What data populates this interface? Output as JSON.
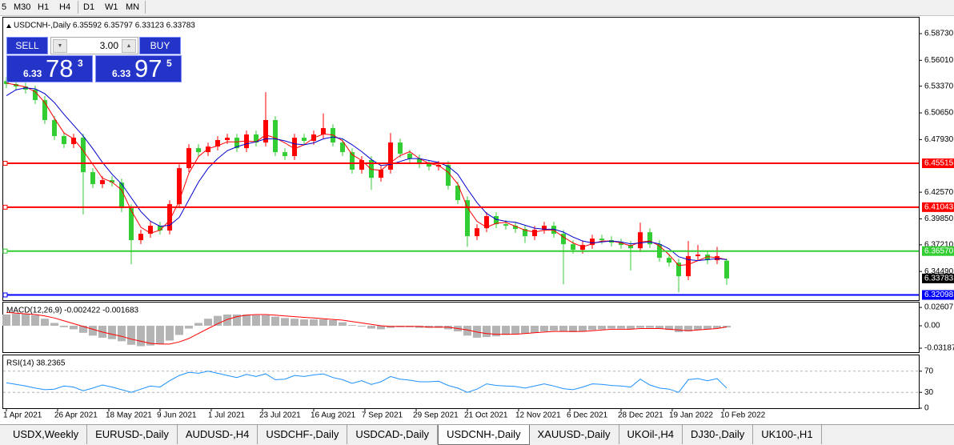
{
  "toolbar": {
    "timeframes": [
      "5",
      "M30",
      "H1",
      "H4",
      "D1",
      "W1",
      "MN"
    ]
  },
  "trade_panel": {
    "sell": "SELL",
    "lot": "3.00",
    "buy": "BUY",
    "sell_price": {
      "prefix": "6.33",
      "big": "78",
      "sup": "3"
    },
    "buy_price": {
      "prefix": "6.33",
      "big": "97",
      "sup": "5"
    }
  },
  "chart_data": [
    {
      "type": "candlestick",
      "title": "USDCNH-,Daily 6.35592 6.35797 6.33123 6.33783",
      "open": [
        6.539,
        6.5359,
        6.5334,
        6.5302,
        6.5196,
        6.4992,
        6.4829,
        6.4747,
        6.4812,
        6.4461,
        6.4339,
        6.438,
        6.4355,
        6.4094,
        6.3768,
        6.3833,
        6.3915,
        6.3866,
        6.4135,
        6.4502,
        6.4706,
        6.4665,
        6.4722,
        6.4788,
        6.4812,
        6.4706,
        6.4845,
        6.4763,
        6.4992,
        6.4665,
        6.4625,
        6.4812,
        6.478,
        6.4845,
        6.491,
        6.4763,
        6.4665,
        6.4486,
        6.4584,
        6.4404,
        6.4486,
        6.4763,
        6.4649,
        6.46,
        6.4543,
        6.4518,
        6.4535,
        6.4323,
        6.4176,
        6.3809,
        6.389,
        6.4013,
        6.3931,
        6.3915,
        6.3882,
        6.3809,
        6.3874,
        6.3915,
        6.3833,
        6.3727,
        6.367,
        6.3719,
        6.3784,
        6.3768,
        6.3743,
        6.3719,
        6.3686,
        6.3849,
        6.3727,
        6.3588,
        6.3539,
        6.3401,
        6.3605,
        6.3621,
        6.3564,
        6.35592
      ],
      "high": [
        6.543,
        6.5399,
        6.5374,
        6.5342,
        6.5236,
        6.5032,
        6.4869,
        6.4852,
        6.4852,
        6.4501,
        6.442,
        6.442,
        6.4395,
        6.4134,
        6.3873,
        6.3955,
        6.3955,
        6.4175,
        6.4542,
        6.4746,
        6.4746,
        6.4762,
        6.4828,
        6.4852,
        6.4852,
        6.4885,
        6.4885,
        6.5277,
        6.5032,
        6.4705,
        6.4852,
        6.4852,
        6.4885,
        6.506,
        6.495,
        6.4803,
        6.4705,
        6.4624,
        6.4624,
        6.4526,
        6.486,
        6.4803,
        6.4689,
        6.464,
        6.4583,
        6.4575,
        6.4575,
        6.4363,
        6.4216,
        6.393,
        6.4053,
        6.4053,
        6.3971,
        6.3955,
        6.3922,
        6.3914,
        6.3955,
        6.3955,
        6.3873,
        6.3767,
        6.3759,
        6.3824,
        6.3824,
        6.3808,
        6.3783,
        6.3759,
        6.3947,
        6.3889,
        6.3767,
        6.3628,
        6.3579,
        6.376,
        6.372,
        6.3661,
        6.37,
        6.35797
      ],
      "low": [
        6.5319,
        6.5294,
        6.5262,
        6.5156,
        6.4952,
        6.4789,
        6.4707,
        6.4707,
        6.403,
        6.4299,
        6.4299,
        6.4315,
        6.4054,
        6.3523,
        6.3728,
        6.3793,
        6.3826,
        6.3826,
        6.4095,
        6.4462,
        6.4625,
        6.4625,
        6.4682,
        6.4748,
        6.4666,
        6.4666,
        6.4723,
        6.4723,
        6.4625,
        6.4585,
        6.4585,
        6.474,
        6.474,
        6.4805,
        6.4723,
        6.4625,
        6.4446,
        6.4446,
        6.428,
        6.4364,
        6.4446,
        6.4609,
        6.456,
        6.4503,
        6.4478,
        6.4478,
        6.4283,
        6.4136,
        6.37,
        6.3769,
        6.385,
        6.3891,
        6.3875,
        6.3842,
        6.374,
        6.3769,
        6.3834,
        6.3793,
        6.3319,
        6.363,
        6.363,
        6.3679,
        6.3728,
        6.3703,
        6.3679,
        6.346,
        6.3646,
        6.3687,
        6.3548,
        6.3499,
        6.3237,
        6.3361,
        6.3565,
        6.3524,
        6.3524,
        6.33123
      ],
      "close": [
        6.5359,
        6.5334,
        6.5302,
        6.5196,
        6.4992,
        6.4829,
        6.4747,
        6.4812,
        6.4461,
        6.4339,
        6.438,
        6.4355,
        6.4094,
        6.3768,
        6.3833,
        6.3915,
        6.3866,
        6.4135,
        6.4502,
        6.4706,
        6.4665,
        6.4722,
        6.4788,
        6.4812,
        6.4706,
        6.4845,
        6.4763,
        6.4992,
        6.4665,
        6.4625,
        6.4812,
        6.478,
        6.4845,
        6.491,
        6.4763,
        6.4665,
        6.4486,
        6.4584,
        6.4404,
        6.4486,
        6.4763,
        6.4649,
        6.46,
        6.4543,
        6.4518,
        6.4535,
        6.4323,
        6.4176,
        6.3809,
        6.389,
        6.4013,
        6.3931,
        6.3915,
        6.3882,
        6.3809,
        6.3874,
        6.3915,
        6.3833,
        6.3727,
        6.367,
        6.3719,
        6.3784,
        6.3768,
        6.3743,
        6.3719,
        6.3686,
        6.3849,
        6.3727,
        6.3588,
        6.3539,
        6.3401,
        6.3605,
        6.3621,
        6.3564,
        6.3605,
        6.33783
      ],
      "up_color": "#ff0000",
      "down_color": "#32cd32",
      "overlays": [
        {
          "color": "#ff0000",
          "values": [
            6.537,
            6.535,
            6.533,
            6.528,
            6.517,
            6.501,
            6.486,
            6.48,
            6.468,
            6.454,
            6.44,
            6.436,
            6.428,
            6.407,
            6.39,
            6.384,
            6.387,
            6.397,
            6.417,
            6.445,
            6.462,
            6.47,
            6.473,
            6.477,
            6.477,
            6.478,
            6.477,
            6.484,
            6.481,
            6.476,
            6.47,
            6.474,
            6.481,
            6.485,
            6.484,
            6.478,
            6.464,
            6.458,
            6.449,
            6.448,
            6.456,
            6.463,
            6.467,
            6.46,
            6.455,
            6.453,
            6.446,
            6.434,
            6.41,
            6.396,
            6.39,
            6.394,
            6.395,
            6.391,
            6.387,
            6.385,
            6.387,
            6.387,
            6.38,
            6.374,
            6.37,
            6.373,
            6.376,
            6.376,
            6.374,
            6.371,
            6.375,
            6.376,
            6.371,
            6.362,
            6.351,
            6.352,
            6.356,
            6.36,
            6.359,
            6.357
          ]
        },
        {
          "color": "#0000cd",
          "values": [
            6.524,
            6.53,
            6.532,
            6.531,
            6.526,
            6.517,
            6.505,
            6.494,
            6.483,
            6.47,
            6.456,
            6.444,
            6.434,
            6.42,
            6.406,
            6.396,
            6.391,
            6.392,
            6.4,
            6.418,
            6.436,
            6.45,
            6.46,
            6.468,
            6.472,
            6.475,
            6.477,
            6.48,
            6.48,
            6.478,
            6.475,
            6.474,
            6.476,
            6.48,
            6.482,
            6.48,
            6.474,
            6.467,
            6.459,
            6.453,
            6.454,
            6.457,
            6.46,
            6.46,
            6.458,
            6.456,
            6.452,
            6.444,
            6.429,
            6.415,
            6.404,
            6.398,
            6.396,
            6.395,
            6.392,
            6.389,
            6.388,
            6.388,
            6.385,
            6.38,
            6.376,
            6.374,
            6.375,
            6.376,
            6.375,
            6.373,
            6.374,
            6.375,
            6.373,
            6.368,
            6.36,
            6.357,
            6.356,
            6.357,
            6.358,
            6.357
          ]
        }
      ],
      "levels": [
        {
          "value": 6.45515,
          "label": "6.45515",
          "color": "#ff0000"
        },
        {
          "value": 6.41043,
          "label": "6.41043",
          "color": "#ff0000"
        },
        {
          "value": 6.3657,
          "label": "6.36570",
          "color": "#32cd32"
        },
        {
          "value": 6.32098,
          "label": "6.32098",
          "color": "#0000ff"
        }
      ],
      "xlim": [
        -0.33,
        95
      ],
      "xticks": [
        {
          "value": 0,
          "label": "1 Apr 2021"
        },
        {
          "value": 5.33,
          "label": "26 Apr 2021"
        },
        {
          "value": 10.67,
          "label": "18 May 2021"
        },
        {
          "value": 16,
          "label": "9 Jun 2021"
        },
        {
          "value": 21.33,
          "label": "1 Jul 2021"
        },
        {
          "value": 26.67,
          "label": "23 Jul 2021"
        },
        {
          "value": 32,
          "label": "16 Aug 2021"
        },
        {
          "value": 37.33,
          "label": "7 Sep 2021"
        },
        {
          "value": 42.67,
          "label": "29 Sep 2021"
        },
        {
          "value": 48,
          "label": "21 Oct 2021"
        },
        {
          "value": 53.33,
          "label": "12 Nov 2021"
        },
        {
          "value": 58.67,
          "label": "6 Dec 2021"
        },
        {
          "value": 64,
          "label": "28 Dec 2021"
        },
        {
          "value": 69.33,
          "label": "19 Jan 2022"
        },
        {
          "value": 74.67,
          "label": "10 Feb 2022"
        }
      ],
      "ylim": [
        6.3157,
        6.6036
      ],
      "yticks": [
        {
          "value": 6.5873,
          "label": "6.58730"
        },
        {
          "value": 6.5601,
          "label": "6.56010"
        },
        {
          "value": 6.5337,
          "label": "6.53370"
        },
        {
          "value": 6.5065,
          "label": "6.50650"
        },
        {
          "value": 6.4793,
          "label": "6.47930"
        },
        {
          "value": 6.4257,
          "label": "6.42570"
        },
        {
          "value": 6.3985,
          "label": "6.39850"
        },
        {
          "value": 6.3721,
          "label": "6.37210"
        },
        {
          "value": 6.3449,
          "label": "6.34490"
        }
      ]
    },
    {
      "type": "macd",
      "title": "MACD(12,26,9) -0.002422 -0.001683",
      "values": [
        0.016,
        0.017,
        0.017,
        0.015,
        0.01,
        0.004,
        -0.002,
        -0.005,
        -0.01,
        -0.014,
        -0.017,
        -0.019,
        -0.022,
        -0.027,
        -0.029,
        -0.028,
        -0.026,
        -0.021,
        -0.013,
        -0.004,
        0.004,
        0.01,
        0.014,
        0.016,
        0.016,
        0.016,
        0.015,
        0.015,
        0.013,
        0.011,
        0.01,
        0.009,
        0.009,
        0.009,
        0.008,
        0.005,
        0.001,
        -0.001,
        -0.004,
        -0.005,
        -0.003,
        -0.002,
        -0.002,
        -0.003,
        -0.003,
        -0.003,
        -0.005,
        -0.008,
        -0.014,
        -0.017,
        -0.016,
        -0.015,
        -0.013,
        -0.012,
        -0.011,
        -0.01,
        -0.008,
        -0.007,
        -0.008,
        -0.009,
        -0.008,
        -0.006,
        -0.005,
        -0.004,
        -0.004,
        -0.005,
        -0.003,
        -0.003,
        -0.004,
        -0.006,
        -0.009,
        -0.008,
        -0.006,
        -0.005,
        -0.004,
        -0.002422
      ],
      "color": "#b4b4b4",
      "signal": {
        "color": "#ff0000",
        "values": [
          0.019,
          0.018,
          0.017,
          0.016,
          0.014,
          0.011,
          0.007,
          0.003,
          -0.001,
          -0.005,
          -0.009,
          -0.012,
          -0.015,
          -0.019,
          -0.022,
          -0.025,
          -0.026,
          -0.026,
          -0.023,
          -0.018,
          -0.011,
          -0.004,
          0.003,
          0.009,
          0.013,
          0.015,
          0.016,
          0.016,
          0.015,
          0.014,
          0.013,
          0.012,
          0.011,
          0.01,
          0.009,
          0.008,
          0.006,
          0.004,
          0.002,
          0.0,
          -0.001,
          -0.001,
          -0.001,
          -0.001,
          -0.002,
          -0.002,
          -0.002,
          -0.004,
          -0.006,
          -0.009,
          -0.011,
          -0.012,
          -0.012,
          -0.012,
          -0.011,
          -0.01,
          -0.009,
          -0.008,
          -0.008,
          -0.008,
          -0.008,
          -0.007,
          -0.006,
          -0.005,
          -0.005,
          -0.005,
          -0.004,
          -0.004,
          -0.004,
          -0.005,
          -0.006,
          -0.007,
          -0.006,
          -0.005,
          -0.004,
          -0.001683
        ]
      },
      "ylim": [
        -0.0375,
        0.033
      ],
      "yticks": [
        0.02607,
        {
          "value": 0,
          "label": "0.00"
        },
        -0.03187
      ]
    },
    {
      "type": "line",
      "title": "RSI(14) 38.2365",
      "values": [
        48,
        45,
        42,
        38,
        35,
        36,
        42,
        40,
        33,
        38,
        44,
        40,
        35,
        30,
        36,
        42,
        40,
        52,
        62,
        68,
        66,
        70,
        66,
        62,
        58,
        64,
        60,
        65,
        54,
        55,
        62,
        60,
        63,
        65,
        58,
        54,
        47,
        52,
        45,
        50,
        60,
        55,
        53,
        50,
        50,
        51,
        43,
        38,
        30,
        36,
        46,
        43,
        42,
        41,
        38,
        42,
        46,
        42,
        37,
        35,
        40,
        46,
        45,
        43,
        42,
        40,
        55,
        44,
        38,
        36,
        30,
        54,
        56,
        52,
        56,
        38.2365
      ],
      "color": "#1e90ff",
      "ylim": [
        0,
        100
      ],
      "yticks": [
        70,
        30,
        0
      ],
      "grid": true
    }
  ],
  "tabs": [
    "USDX,Weekly",
    "EURUSD-,Daily",
    "AUDUSD-,H4",
    "USDCHF-,Daily",
    "USDCAD-,Daily",
    "USDCNH-,Daily",
    "XAUUSD-,Daily",
    "UKOil-,H4",
    "DJ30-,Daily",
    "UK100-,H1"
  ],
  "active_tab": 5
}
